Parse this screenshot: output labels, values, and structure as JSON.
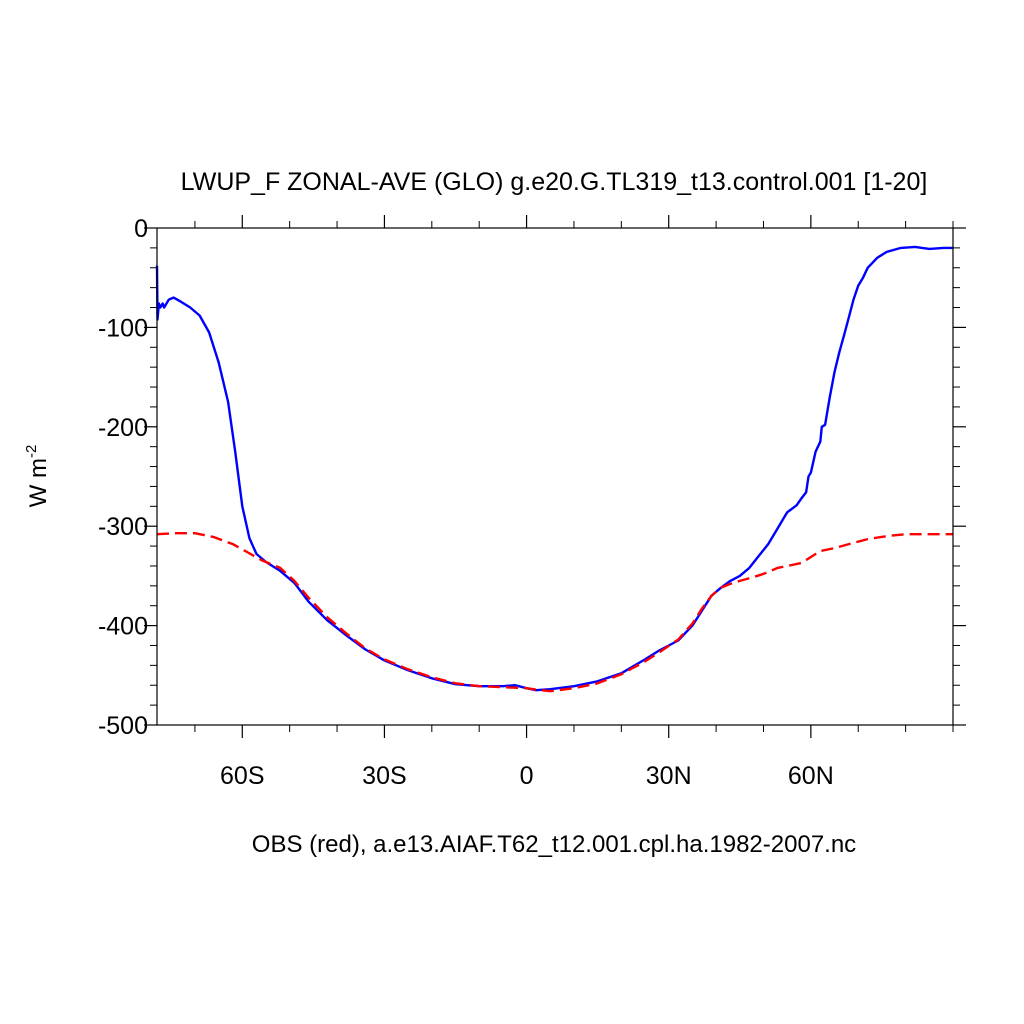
{
  "chart_data": {
    "type": "line",
    "title": "LWUP_F ZONAL-AVE (GLO) g.e20.G.TL319_t13.control.001 [1-20]",
    "ylabel_base": "W m",
    "ylabel_exp": "-2",
    "xlabel": "OBS (red), a.e13.AIAF.T62_t12.001.cpl.ha.1982-2007.nc",
    "xlim": [
      -78,
      90
    ],
    "ylim": [
      -500,
      0
    ],
    "x_ticks": [
      {
        "value": -60,
        "label": "60S"
      },
      {
        "value": -30,
        "label": "30S"
      },
      {
        "value": 0,
        "label": "0"
      },
      {
        "value": 30,
        "label": "30N"
      },
      {
        "value": 60,
        "label": "60N"
      }
    ],
    "y_ticks": [
      {
        "value": 0,
        "label": "0"
      },
      {
        "value": -100,
        "label": "-100"
      },
      {
        "value": -200,
        "label": "-200"
      },
      {
        "value": -300,
        "label": "-300"
      },
      {
        "value": -400,
        "label": "-400"
      },
      {
        "value": -500,
        "label": "-500"
      }
    ],
    "series": [
      {
        "color": "#0000ff",
        "dash": "solid",
        "points": [
          [
            -78,
            -38
          ],
          [
            -77.9,
            -92
          ],
          [
            -77.6,
            -76
          ],
          [
            -77.3,
            -80
          ],
          [
            -76.8,
            -76
          ],
          [
            -76.5,
            -80
          ],
          [
            -75.5,
            -72
          ],
          [
            -74.5,
            -70
          ],
          [
            -73,
            -74
          ],
          [
            -71,
            -80
          ],
          [
            -69,
            -88
          ],
          [
            -67,
            -105
          ],
          [
            -65,
            -135
          ],
          [
            -63,
            -175
          ],
          [
            -61.5,
            -225
          ],
          [
            -60,
            -280
          ],
          [
            -58.5,
            -312
          ],
          [
            -57,
            -328
          ],
          [
            -55,
            -336
          ],
          [
            -52,
            -345
          ],
          [
            -49,
            -357
          ],
          [
            -46,
            -376
          ],
          [
            -42,
            -395
          ],
          [
            -38,
            -410
          ],
          [
            -34,
            -424
          ],
          [
            -30,
            -435
          ],
          [
            -25,
            -445
          ],
          [
            -20,
            -453
          ],
          [
            -15,
            -459
          ],
          [
            -10,
            -461
          ],
          [
            -5,
            -461
          ],
          [
            -2.5,
            -460
          ],
          [
            0,
            -463
          ],
          [
            2,
            -465
          ],
          [
            5,
            -464
          ],
          [
            10,
            -461
          ],
          [
            15,
            -456
          ],
          [
            20,
            -448
          ],
          [
            25,
            -434
          ],
          [
            28,
            -425
          ],
          [
            32,
            -415
          ],
          [
            35,
            -400
          ],
          [
            37,
            -385
          ],
          [
            39,
            -370
          ],
          [
            41,
            -362
          ],
          [
            43,
            -355
          ],
          [
            45,
            -350
          ],
          [
            47,
            -342
          ],
          [
            49,
            -330
          ],
          [
            51,
            -318
          ],
          [
            53,
            -302
          ],
          [
            55,
            -286
          ],
          [
            57,
            -279
          ],
          [
            58,
            -272
          ],
          [
            59,
            -266
          ],
          [
            59.5,
            -250
          ],
          [
            60,
            -246
          ],
          [
            61,
            -225
          ],
          [
            62,
            -215
          ],
          [
            62.3,
            -200
          ],
          [
            63,
            -198
          ],
          [
            64,
            -170
          ],
          [
            65,
            -145
          ],
          [
            66,
            -125
          ],
          [
            67,
            -108
          ],
          [
            68,
            -90
          ],
          [
            69,
            -72
          ],
          [
            70,
            -58
          ],
          [
            71,
            -50
          ],
          [
            72,
            -40
          ],
          [
            74,
            -30
          ],
          [
            76,
            -24
          ],
          [
            79,
            -20
          ],
          [
            82,
            -19
          ],
          [
            85,
            -21
          ],
          [
            88,
            -20
          ],
          [
            90,
            -20
          ]
        ]
      },
      {
        "color": "#ff0000",
        "dash": "dashed",
        "points": [
          [
            -78,
            -308
          ],
          [
            -74,
            -307
          ],
          [
            -70,
            -307
          ],
          [
            -66,
            -311
          ],
          [
            -62,
            -318
          ],
          [
            -59,
            -326
          ],
          [
            -56,
            -334
          ],
          [
            -52,
            -342
          ],
          [
            -49,
            -355
          ],
          [
            -46,
            -372
          ],
          [
            -42,
            -392
          ],
          [
            -38,
            -408
          ],
          [
            -34,
            -423
          ],
          [
            -30,
            -434
          ],
          [
            -25,
            -444
          ],
          [
            -20,
            -452
          ],
          [
            -15,
            -458
          ],
          [
            -10,
            -461
          ],
          [
            -5,
            -462
          ],
          [
            0,
            -463
          ],
          [
            3,
            -465
          ],
          [
            5,
            -466
          ],
          [
            10,
            -463
          ],
          [
            15,
            -458
          ],
          [
            20,
            -449
          ],
          [
            25,
            -436
          ],
          [
            28,
            -427
          ],
          [
            32,
            -414
          ],
          [
            35,
            -398
          ],
          [
            37,
            -383
          ],
          [
            39,
            -370
          ],
          [
            41,
            -362
          ],
          [
            43,
            -358
          ],
          [
            45,
            -355
          ],
          [
            48,
            -351
          ],
          [
            50,
            -348
          ],
          [
            53,
            -342
          ],
          [
            56,
            -339
          ],
          [
            58,
            -337
          ],
          [
            60,
            -331
          ],
          [
            62,
            -325
          ],
          [
            65,
            -322
          ],
          [
            68,
            -318
          ],
          [
            72,
            -313
          ],
          [
            76,
            -310
          ],
          [
            80,
            -308
          ],
          [
            85,
            -308
          ],
          [
            90,
            -308
          ]
        ]
      }
    ]
  }
}
